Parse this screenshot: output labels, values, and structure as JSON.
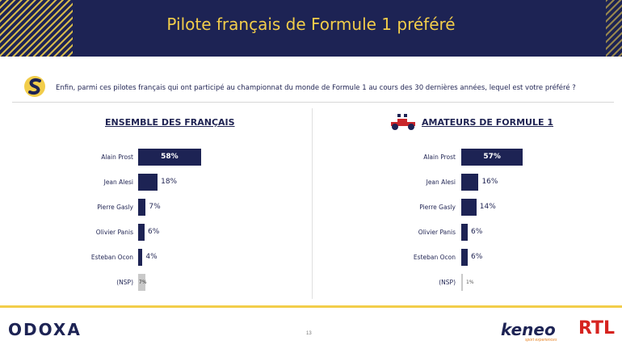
{
  "header": {
    "title": "Pilote français de Formule 1 préféré"
  },
  "question": "Enfin, parmi ces pilotes français qui ont participé au championnat du monde de Formule 1 au cours des 30 dernières années, lequel est votre préféré ?",
  "colors": {
    "navy": "#1d2354",
    "gold": "#f2cd4a",
    "nsp_grey": "#c9c9c9",
    "rtl_red": "#d6231f"
  },
  "icons": {
    "question": "odoxa-s-logo-icon",
    "f1": "f1-car-icon"
  },
  "chart_data": [
    {
      "type": "bar",
      "orientation": "horizontal",
      "title": "ENSEMBLE DES FRANÇAIS",
      "categories": [
        "Alain Prost",
        "Jean Alesi",
        "Pierre Gasly",
        "Olivier Panis",
        "Esteban Ocon",
        "(NSP)"
      ],
      "values": [
        58,
        18,
        7,
        6,
        4,
        7
      ],
      "labels": [
        "58%",
        "18%",
        "7%",
        "6%",
        "4%",
        "7%"
      ],
      "unit": "%",
      "xlim": [
        0,
        100
      ]
    },
    {
      "type": "bar",
      "orientation": "horizontal",
      "title": "AMATEURS DE FORMULE 1",
      "categories": [
        "Alain Prost",
        "Jean Alesi",
        "Pierre Gasly",
        "Olivier Panis",
        "Esteban Ocon",
        "(NSP)"
      ],
      "values": [
        57,
        16,
        14,
        6,
        6,
        1
      ],
      "labels": [
        "57%",
        "16%",
        "14%",
        "6%",
        "6%",
        "1%"
      ],
      "unit": "%",
      "xlim": [
        0,
        100
      ]
    }
  ],
  "footer": {
    "odoxa": "ODOXA",
    "page_number": "13",
    "keneo": "keneo",
    "keneo_tagline": "sport experiences",
    "rtl": "RTL"
  }
}
